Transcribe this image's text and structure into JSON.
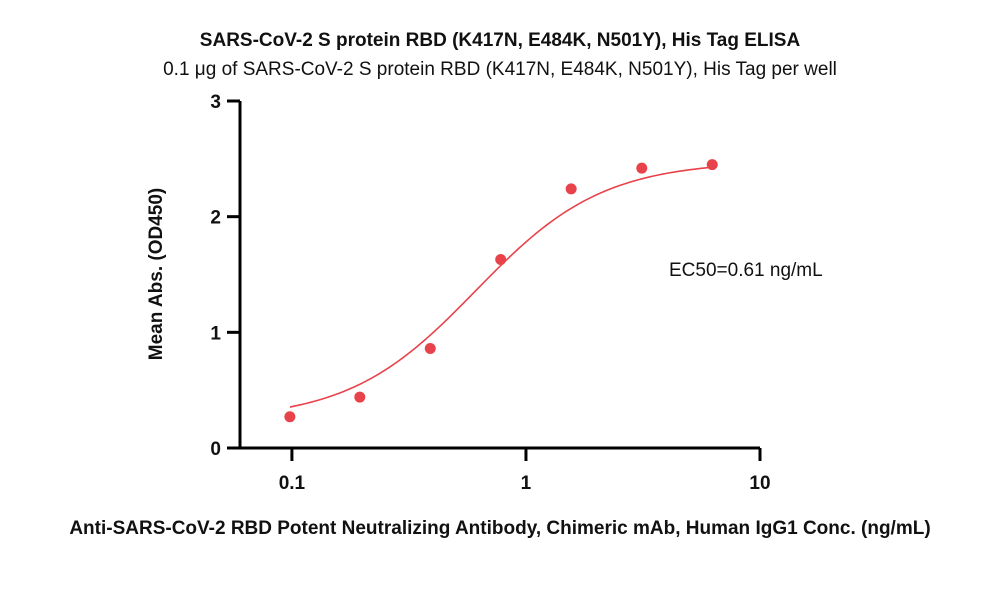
{
  "chart_data": {
    "type": "scatter",
    "title": "SARS-CoV-2 S protein RBD (K417N, E484K, N501Y), His Tag ELISA",
    "subtitle": "0.1 μg of SARS-CoV-2 S protein RBD (K417N, E484K, N501Y), His Tag per well",
    "xlabel": "Anti-SARS-CoV-2 RBD Potent Neutralizing Antibody, Chimeric mAb, Human IgG1 Conc. (ng/mL)",
    "ylabel": "Mean Abs. (OD450)",
    "xscale": "log",
    "xlim": [
      0.06,
      10
    ],
    "ylim": [
      0,
      3
    ],
    "xticks": [
      0.1,
      1,
      10
    ],
    "xtick_labels": [
      "0.1",
      "1",
      "10"
    ],
    "yticks": [
      0,
      1,
      2,
      3
    ],
    "ytick_labels": [
      "0",
      "1",
      "2",
      "3"
    ],
    "grid": false,
    "series": [
      {
        "x": [
          0.098,
          0.195,
          0.39,
          0.78,
          1.56,
          3.125,
          6.25
        ],
        "y": [
          0.27,
          0.44,
          0.86,
          1.63,
          2.24,
          2.42,
          2.45
        ],
        "color": "#e8424a"
      }
    ],
    "fit": {
      "bottom": 0.24,
      "top": 2.48,
      "ec50": 0.61,
      "hill": 1.6,
      "color": "#e8424a"
    },
    "annotations": [
      {
        "text": "EC50=0.61 ng/mL"
      }
    ]
  }
}
